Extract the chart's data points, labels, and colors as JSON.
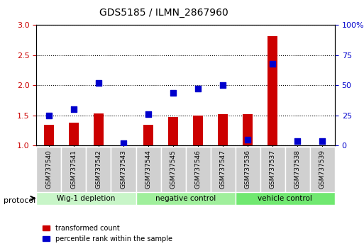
{
  "title": "GDS5185 / ILMN_2867960",
  "samples": [
    "GSM737540",
    "GSM737541",
    "GSM737542",
    "GSM737543",
    "GSM737544",
    "GSM737545",
    "GSM737546",
    "GSM737547",
    "GSM737536",
    "GSM737537",
    "GSM737538",
    "GSM737539"
  ],
  "transformed_count": [
    1.35,
    1.38,
    1.53,
    1.0,
    1.35,
    1.47,
    1.5,
    1.52,
    1.52,
    2.82,
    1.0,
    1.0
  ],
  "percentile_rank": [
    25,
    30,
    52,
    2,
    26,
    44,
    47,
    50,
    5,
    68,
    4,
    4
  ],
  "groups": [
    {
      "label": "Wig-1 depletion",
      "start": 0,
      "end": 4,
      "color": "#ccffcc"
    },
    {
      "label": "negative control",
      "start": 4,
      "end": 8,
      "color": "#99ff99"
    },
    {
      "label": "vehicle control",
      "start": 8,
      "end": 12,
      "color": "#66ff66"
    }
  ],
  "ylim_left": [
    1.0,
    3.0
  ],
  "ylim_right": [
    0,
    100
  ],
  "yticks_left": [
    1.0,
    1.5,
    2.0,
    2.5,
    3.0
  ],
  "yticks_right": [
    0,
    25,
    50,
    75,
    100
  ],
  "bar_color": "#cc0000",
  "dot_color": "#0000cc",
  "bar_width": 0.4,
  "dot_size": 40,
  "bg_color_plot": "#ffffff",
  "xlabel_area_color_1": "#d0d0d0",
  "group_colors": [
    "#c8f5c8",
    "#a0ef9c",
    "#70e870"
  ],
  "protocol_label": "protocol",
  "legend_red_label": "transformed count",
  "legend_blue_label": "percentile rank within the sample"
}
